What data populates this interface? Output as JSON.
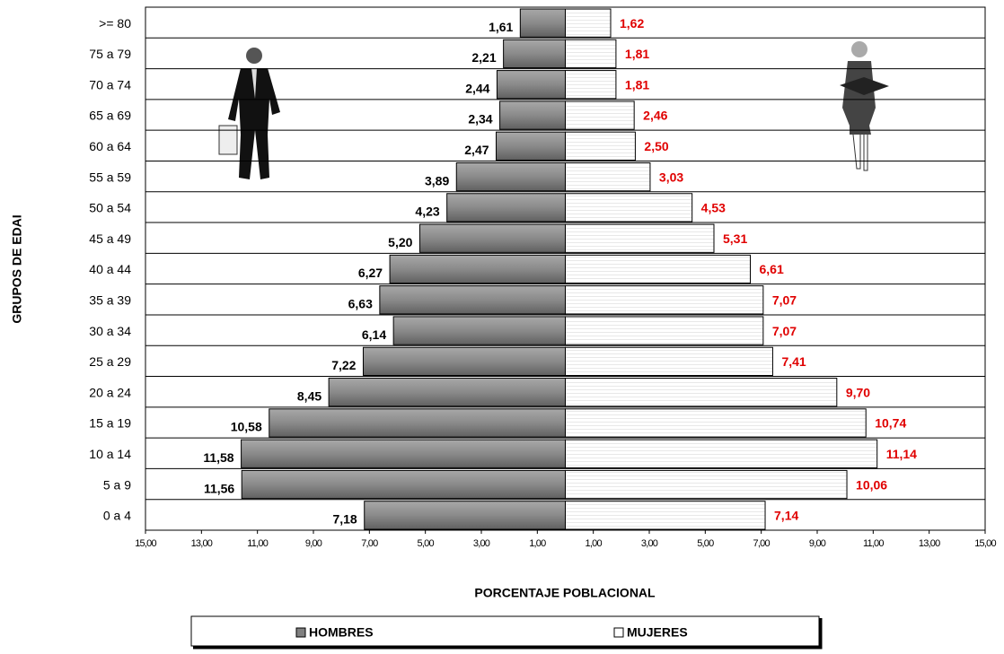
{
  "chart_data": {
    "type": "pyramid",
    "y_axis_label": "GRUPOS DE EDAI",
    "x_axis_label": "PORCENTAJE POBLACIONAL",
    "categories": [
      ">= 80",
      "75 a 79",
      "70 a 74",
      "65 a 69",
      "60 a 64",
      "55 a 59",
      "50 a 54",
      "45 a 49",
      "40 a 44",
      "35 a 39",
      "30 a 34",
      "25 a 29",
      "20 a 24",
      "15 a 19",
      "10 a 14",
      "5 a 9",
      "0 a 4"
    ],
    "series": [
      {
        "name": "HOMBRES",
        "color": "#808080",
        "side": "left",
        "values": [
          1.61,
          2.21,
          2.44,
          2.34,
          2.47,
          3.89,
          4.23,
          5.2,
          6.27,
          6.63,
          6.14,
          7.22,
          8.45,
          10.58,
          11.58,
          11.56,
          7.18
        ],
        "value_labels": [
          "1,61",
          "2,21",
          "2,44",
          "2,34",
          "2,47",
          "3,89",
          "4,23",
          "5,20",
          "6,27",
          "6,63",
          "6,14",
          "7,22",
          "8,45",
          "10,58",
          "11,58",
          "11,56",
          "7,18"
        ]
      },
      {
        "name": "MUJERES",
        "color": "#ffffff",
        "side": "right",
        "values": [
          1.62,
          1.81,
          1.81,
          2.46,
          2.5,
          3.03,
          4.53,
          5.31,
          6.61,
          7.07,
          7.07,
          7.41,
          9.7,
          10.74,
          11.14,
          10.06,
          7.14
        ],
        "value_labels": [
          "1,62",
          "1,81",
          "1,81",
          "2,46",
          "2,50",
          "3,03",
          "4,53",
          "5,31",
          "6,61",
          "7,07",
          "7,07",
          "7,41",
          "9,70",
          "10,74",
          "11,14",
          "10,06",
          "7,14"
        ]
      }
    ],
    "xlim": [
      -15,
      15
    ],
    "xticks": [
      {
        "value": -15,
        "label": "15,00"
      },
      {
        "value": -13,
        "label": "13,00"
      },
      {
        "value": -11,
        "label": "11,00"
      },
      {
        "value": -9,
        "label": "9,00"
      },
      {
        "value": -7,
        "label": "7,00"
      },
      {
        "value": -5,
        "label": "5,00"
      },
      {
        "value": -3,
        "label": "3,00"
      },
      {
        "value": -1,
        "label": "1,00"
      },
      {
        "value": 1,
        "label": "1,00"
      },
      {
        "value": 3,
        "label": "3,00"
      },
      {
        "value": 5,
        "label": "5,00"
      },
      {
        "value": 7,
        "label": "7,00"
      },
      {
        "value": 9,
        "label": "9,00"
      },
      {
        "value": 11,
        "label": "11,00"
      },
      {
        "value": 13,
        "label": "13,00"
      },
      {
        "value": 15,
        "label": "15,00"
      }
    ]
  }
}
